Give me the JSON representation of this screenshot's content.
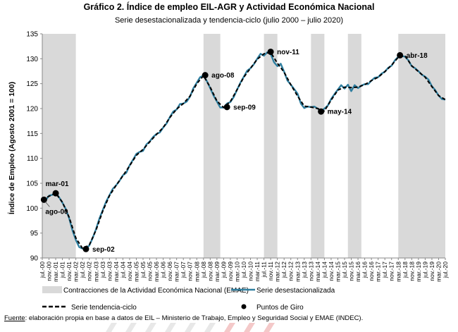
{
  "chart_data": {
    "type": "line",
    "title": "Gráfico 2. Índice de empleo EIL-AGR y Actividad Económica Nacional",
    "subtitle": "Serie desestacionalizada y tendencia-ciclo (julio 2000 – julio 2020)",
    "ylabel": "Índice de Empleo (Agosto 2001 = 100)",
    "xlabel": "",
    "ylim": [
      90,
      135
    ],
    "yticks": [
      90,
      95,
      100,
      105,
      110,
      115,
      120,
      125,
      130,
      135
    ],
    "grid": false,
    "legend_position": "bottom",
    "x_tick_labels": [
      "jul.-00",
      "nov.-00",
      "mar.-01",
      "jul.-01",
      "nov.-01",
      "mar.-02",
      "jul.-02",
      "nov.-02",
      "mar.-03",
      "jul.-03",
      "nov.-03",
      "mar.-04",
      "jul.-04",
      "nov.-04",
      "mar.-05",
      "jul.-05",
      "nov.-05",
      "mar.-06",
      "jul.-06",
      "nov.-06",
      "mar.-07",
      "jul.-07",
      "nov.-07",
      "mar.-08",
      "jul.-08",
      "nov.-08",
      "mar.-09",
      "jul.-09",
      "nov.-09",
      "mar.-10",
      "jul.-10",
      "nov.-10",
      "mar.-11",
      "jul.-11",
      "nov.-11",
      "mar.-12",
      "jul.-12",
      "nov.-12",
      "mar.-13",
      "jul.-13",
      "nov.-13",
      "mar.-14",
      "jul.-14",
      "nov.-14",
      "mar.-15",
      "jul.-15",
      "nov.-15",
      "mar.-16",
      "jul.-16",
      "nov.-16",
      "mar.-17",
      "jul.-17",
      "nov.-17",
      "mar.-18",
      "jul.-18",
      "nov.-18",
      "mar.-19",
      "jul.-19",
      "nov.-19",
      "mar.-20",
      "jul.-20"
    ],
    "contractions": [
      {
        "start": "2000-07",
        "end": "2002-03"
      },
      {
        "start": "2008-07",
        "end": "2009-05"
      },
      {
        "start": "2011-07",
        "end": "2012-03"
      },
      {
        "start": "2013-11",
        "end": "2014-07"
      },
      {
        "start": "2015-09",
        "end": "2016-05"
      },
      {
        "start": "2018-03",
        "end": "2020-07"
      }
    ],
    "series": [
      {
        "name": "Serie desestacionalizada",
        "color": "#2f7fa0",
        "points": [
          [
            "2000-07",
            101.8
          ],
          [
            "2000-09",
            101.6
          ],
          [
            "2000-11",
            102.5
          ],
          [
            "2001-01",
            102.7
          ],
          [
            "2001-03",
            103.1
          ],
          [
            "2001-05",
            102.2
          ],
          [
            "2001-07",
            101.1
          ],
          [
            "2001-09",
            99.8
          ],
          [
            "2001-11",
            98.0
          ],
          [
            "2002-01",
            95.5
          ],
          [
            "2002-03",
            93.6
          ],
          [
            "2002-05",
            92.2
          ],
          [
            "2002-07",
            91.9
          ],
          [
            "2002-09",
            91.9
          ],
          [
            "2002-11",
            92.5
          ],
          [
            "2003-01",
            94.0
          ],
          [
            "2003-03",
            95.8
          ],
          [
            "2003-05",
            97.9
          ],
          [
            "2003-07",
            99.6
          ],
          [
            "2003-09",
            101.3
          ],
          [
            "2003-11",
            102.6
          ],
          [
            "2004-01",
            103.9
          ],
          [
            "2004-03",
            104.6
          ],
          [
            "2004-05",
            105.5
          ],
          [
            "2004-07",
            106.6
          ],
          [
            "2004-09",
            107.1
          ],
          [
            "2004-11",
            108.6
          ],
          [
            "2005-01",
            109.7
          ],
          [
            "2005-03",
            110.9
          ],
          [
            "2005-05",
            111.3
          ],
          [
            "2005-07",
            111.5
          ],
          [
            "2005-09",
            112.8
          ],
          [
            "2005-11",
            113.4
          ],
          [
            "2006-01",
            114.3
          ],
          [
            "2006-03",
            114.9
          ],
          [
            "2006-05",
            115.2
          ],
          [
            "2006-07",
            116.2
          ],
          [
            "2006-09",
            117.0
          ],
          [
            "2006-11",
            118.3
          ],
          [
            "2007-01",
            119.4
          ],
          [
            "2007-03",
            119.8
          ],
          [
            "2007-05",
            120.9
          ],
          [
            "2007-07",
            121.0
          ],
          [
            "2007-09",
            121.4
          ],
          [
            "2007-11",
            122.4
          ],
          [
            "2008-01",
            124.1
          ],
          [
            "2008-03",
            125.2
          ],
          [
            "2008-05",
            126.3
          ],
          [
            "2008-07",
            126.6
          ],
          [
            "2008-09",
            125.5
          ],
          [
            "2008-11",
            124.1
          ],
          [
            "2009-01",
            122.6
          ],
          [
            "2009-03",
            121.4
          ],
          [
            "2009-05",
            120.2
          ],
          [
            "2009-07",
            120.2
          ],
          [
            "2009-09",
            121.0
          ],
          [
            "2009-11",
            121.3
          ],
          [
            "2010-01",
            122.3
          ],
          [
            "2010-03",
            123.8
          ],
          [
            "2010-05",
            125.2
          ],
          [
            "2010-07",
            126.4
          ],
          [
            "2010-09",
            127.6
          ],
          [
            "2010-11",
            128.1
          ],
          [
            "2011-01",
            128.9
          ],
          [
            "2011-03",
            130.0
          ],
          [
            "2011-05",
            131.0
          ],
          [
            "2011-07",
            130.6
          ],
          [
            "2011-09",
            131.3
          ],
          [
            "2011-11",
            131.0
          ],
          [
            "2012-01",
            129.3
          ],
          [
            "2012-03",
            128.5
          ],
          [
            "2012-05",
            129.0
          ],
          [
            "2012-07",
            127.4
          ],
          [
            "2012-09",
            125.6
          ],
          [
            "2012-11",
            124.8
          ],
          [
            "2013-01",
            123.9
          ],
          [
            "2013-03",
            123.0
          ],
          [
            "2013-05",
            121.0
          ],
          [
            "2013-07",
            120.1
          ],
          [
            "2013-09",
            120.4
          ],
          [
            "2013-11",
            120.3
          ],
          [
            "2014-01",
            120.4
          ],
          [
            "2014-03",
            120.0
          ],
          [
            "2014-05",
            119.4
          ],
          [
            "2014-07",
            120.0
          ],
          [
            "2014-09",
            120.6
          ],
          [
            "2014-11",
            121.9
          ],
          [
            "2015-01",
            122.9
          ],
          [
            "2015-03",
            123.8
          ],
          [
            "2015-05",
            124.7
          ],
          [
            "2015-07",
            124.0
          ],
          [
            "2015-09",
            124.8
          ],
          [
            "2015-11",
            123.5
          ],
          [
            "2016-01",
            124.7
          ],
          [
            "2016-03",
            124.1
          ],
          [
            "2016-05",
            124.6
          ],
          [
            "2016-07",
            124.9
          ],
          [
            "2016-09",
            124.9
          ],
          [
            "2016-11",
            125.6
          ],
          [
            "2017-01",
            126.2
          ],
          [
            "2017-03",
            126.3
          ],
          [
            "2017-05",
            127.0
          ],
          [
            "2017-07",
            127.4
          ],
          [
            "2017-09",
            128.2
          ],
          [
            "2017-11",
            128.6
          ],
          [
            "2018-01",
            129.7
          ],
          [
            "2018-03",
            130.4
          ],
          [
            "2018-05",
            130.6
          ],
          [
            "2018-07",
            130.4
          ],
          [
            "2018-09",
            129.7
          ],
          [
            "2018-11",
            128.5
          ],
          [
            "2019-01",
            128.1
          ],
          [
            "2019-03",
            127.5
          ],
          [
            "2019-05",
            126.8
          ],
          [
            "2019-07",
            126.4
          ],
          [
            "2019-09",
            125.8
          ],
          [
            "2019-11",
            124.5
          ],
          [
            "2020-01",
            123.7
          ],
          [
            "2020-03",
            122.6
          ],
          [
            "2020-05",
            121.9
          ],
          [
            "2020-07",
            121.8
          ]
        ]
      },
      {
        "name": "Serie tendencia-ciclo",
        "color": "#000000",
        "dash": "dashed",
        "points": [
          [
            "2000-07",
            101.7
          ],
          [
            "2000-11",
            102.4
          ],
          [
            "2001-03",
            103.0
          ],
          [
            "2001-07",
            101.2
          ],
          [
            "2001-11",
            98.2
          ],
          [
            "2002-03",
            94.0
          ],
          [
            "2002-07",
            91.9
          ],
          [
            "2002-11",
            92.6
          ],
          [
            "2003-03",
            95.6
          ],
          [
            "2003-07",
            99.4
          ],
          [
            "2003-11",
            102.5
          ],
          [
            "2004-03",
            104.6
          ],
          [
            "2004-07",
            106.5
          ],
          [
            "2004-11",
            108.5
          ],
          [
            "2005-03",
            110.6
          ],
          [
            "2005-07",
            111.8
          ],
          [
            "2005-11",
            113.3
          ],
          [
            "2006-03",
            114.8
          ],
          [
            "2006-07",
            116.2
          ],
          [
            "2006-11",
            118.2
          ],
          [
            "2007-03",
            119.9
          ],
          [
            "2007-07",
            121.0
          ],
          [
            "2007-11",
            122.5
          ],
          [
            "2008-03",
            125.0
          ],
          [
            "2008-07",
            126.6
          ],
          [
            "2008-11",
            124.3
          ],
          [
            "2009-03",
            121.5
          ],
          [
            "2009-07",
            120.2
          ],
          [
            "2009-11",
            121.4
          ],
          [
            "2010-03",
            123.8
          ],
          [
            "2010-07",
            126.3
          ],
          [
            "2010-11",
            128.1
          ],
          [
            "2011-03",
            129.9
          ],
          [
            "2011-07",
            131.0
          ],
          [
            "2011-11",
            131.3
          ],
          [
            "2012-03",
            129.1
          ],
          [
            "2012-07",
            127.3
          ],
          [
            "2012-11",
            124.8
          ],
          [
            "2013-03",
            122.5
          ],
          [
            "2013-07",
            120.5
          ],
          [
            "2013-11",
            120.3
          ],
          [
            "2014-03",
            120.0
          ],
          [
            "2014-07",
            119.5
          ],
          [
            "2014-11",
            121.7
          ],
          [
            "2015-03",
            123.7
          ],
          [
            "2015-07",
            124.3
          ],
          [
            "2015-11",
            124.2
          ],
          [
            "2016-03",
            124.3
          ],
          [
            "2016-07",
            124.8
          ],
          [
            "2016-11",
            125.6
          ],
          [
            "2017-03",
            126.3
          ],
          [
            "2017-07",
            127.4
          ],
          [
            "2017-11",
            128.7
          ],
          [
            "2018-03",
            130.3
          ],
          [
            "2018-07",
            130.6
          ],
          [
            "2018-11",
            128.6
          ],
          [
            "2019-03",
            127.4
          ],
          [
            "2019-07",
            126.3
          ],
          [
            "2019-11",
            124.4
          ],
          [
            "2020-03",
            122.6
          ],
          [
            "2020-07",
            121.8
          ]
        ]
      }
    ],
    "turning_points": [
      {
        "label": "ago-00",
        "date": "2000-08",
        "value": 101.7,
        "label_pos": "below"
      },
      {
        "label": "mar-01",
        "date": "2001-03",
        "value": 103.0,
        "label_pos": "above"
      },
      {
        "label": "sep-02",
        "date": "2002-09",
        "value": 91.8,
        "label_pos": "right"
      },
      {
        "label": "ago-08",
        "date": "2008-08",
        "value": 126.7,
        "label_pos": "right"
      },
      {
        "label": "sep-09",
        "date": "2009-09",
        "value": 120.3,
        "label_pos": "right"
      },
      {
        "label": "nov-11",
        "date": "2011-11",
        "value": 131.4,
        "label_pos": "right"
      },
      {
        "label": "may-14",
        "date": "2014-05",
        "value": 119.4,
        "label_pos": "right"
      },
      {
        "label": "abr-18",
        "date": "2018-04",
        "value": 130.7,
        "label_pos": "right"
      }
    ],
    "legend": {
      "contractions_label": "Contracciones de la Actividad Económica Nacional (EMAE)",
      "seasonal_label": "Serie desestacionalizada",
      "trend_label": "Serie tendencia-ciclo",
      "turning_points_label": "Puntos de Giro"
    },
    "contraction_color": "#d9d9d9"
  },
  "source": {
    "prefix": "Fuente",
    "text": ": elaboración propia en base a datos de EIL – Ministerio de Trabajo, Empleo y Seguridad Social y EMAE (INDEC)."
  }
}
